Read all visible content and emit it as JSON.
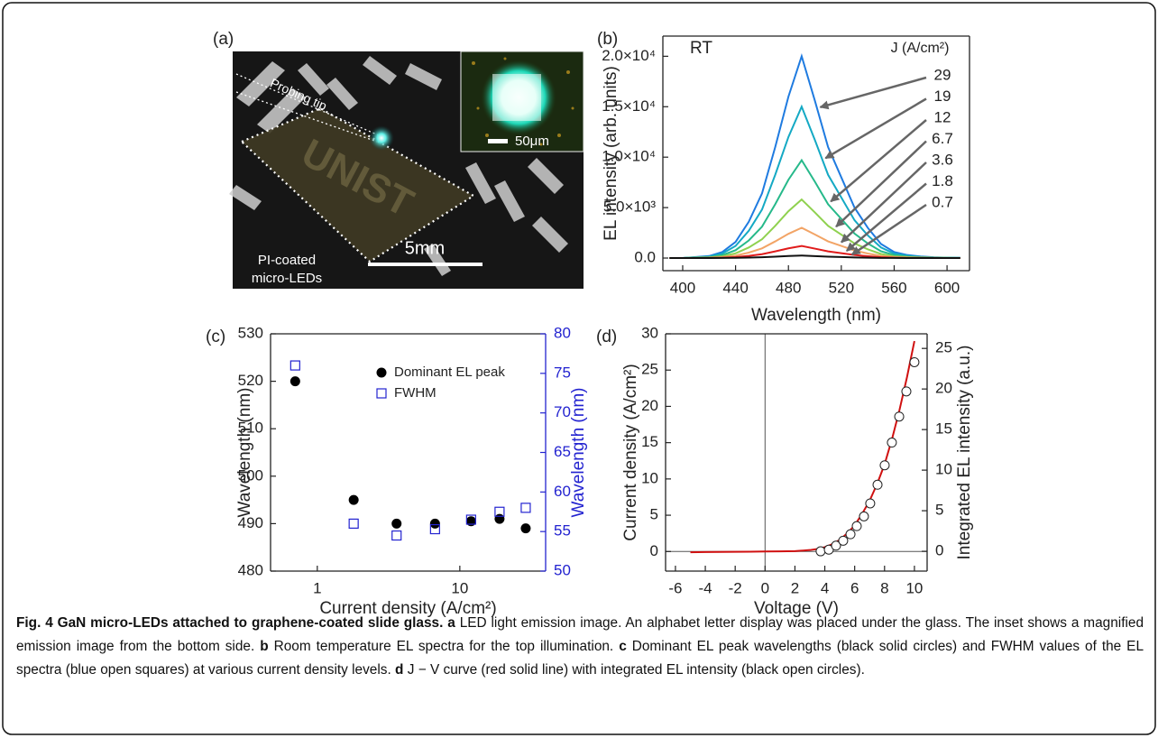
{
  "figure_a": {
    "label": "(a)",
    "annotations": [
      "Probing tip",
      "PI-coated",
      "micro-LEDs",
      "5mm",
      "50μm"
    ]
  },
  "chart_data": [
    {
      "type": "line",
      "label": "(b)",
      "xlabel": "Wavelength (nm)",
      "ylabel": "EL intensity (arb. units)",
      "annotations": [
        "RT"
      ],
      "legend_title": "J (A/cm²)",
      "legend": "right",
      "x": [
        390,
        400,
        410,
        420,
        430,
        440,
        450,
        460,
        470,
        480,
        490,
        500,
        510,
        520,
        530,
        540,
        550,
        560,
        570,
        580,
        590,
        600,
        610
      ],
      "series": [
        {
          "name": "29",
          "color": "#1f7be0",
          "values": [
            0,
            0,
            100,
            200,
            600,
            1600,
            3600,
            6400,
            11000,
            16000,
            20000,
            15600,
            11000,
            8000,
            5000,
            3000,
            1400,
            600,
            300,
            160,
            80,
            40,
            20
          ]
        },
        {
          "name": "19",
          "color": "#14a9c4",
          "values": [
            0,
            0,
            75,
            150,
            450,
            1200,
            2700,
            4800,
            8250,
            12000,
            15000,
            11700,
            8250,
            6000,
            3750,
            2250,
            1050,
            450,
            225,
            120,
            60,
            30,
            15
          ]
        },
        {
          "name": "12",
          "color": "#26b98a",
          "values": [
            0,
            0,
            49,
            97,
            291,
            776,
            1746,
            3104,
            5335,
            7760,
            9700,
            7566,
            5335,
            3880,
            2425,
            1455,
            679,
            291,
            146,
            78,
            39,
            19,
            10
          ]
        },
        {
          "name": "6.7",
          "color": "#8fd14f",
          "values": [
            0,
            0,
            29,
            58,
            174,
            464,
            1044,
            1856,
            3190,
            4640,
            5800,
            4524,
            3190,
            2320,
            1450,
            870,
            406,
            174,
            87,
            46,
            23,
            12,
            6
          ]
        },
        {
          "name": "3.6",
          "color": "#f2a466",
          "values": [
            0,
            0,
            15,
            30,
            90,
            240,
            540,
            960,
            1650,
            2400,
            3000,
            2340,
            1650,
            1200,
            750,
            450,
            210,
            90,
            45,
            24,
            12,
            6,
            3
          ]
        },
        {
          "name": "1.8",
          "color": "#e01b1b",
          "values": [
            0,
            0,
            6,
            12,
            36,
            96,
            216,
            384,
            660,
            960,
            1200,
            936,
            660,
            480,
            300,
            180,
            84,
            36,
            18,
            10,
            5,
            2,
            1
          ]
        },
        {
          "name": "0.7",
          "color": "#111111",
          "values": [
            0,
            0,
            1,
            3,
            8,
            20,
            45,
            80,
            138,
            200,
            250,
            195,
            138,
            100,
            63,
            38,
            18,
            8,
            4,
            2,
            1,
            1,
            0
          ]
        }
      ],
      "xlim": [
        385,
        617
      ],
      "ylim": [
        -1250,
        22000
      ],
      "xticks": [
        400,
        440,
        480,
        520,
        560,
        600
      ],
      "yticks": [
        {
          "value": 0,
          "label": "0.0"
        },
        {
          "value": 5000,
          "label": "5.0×10³"
        },
        {
          "value": 10000,
          "label": "1.0×10⁴"
        },
        {
          "value": 15000,
          "label": "1.5×10⁴"
        },
        {
          "value": 20000,
          "label": "2.0×10⁴"
        }
      ]
    },
    {
      "type": "scatter",
      "label": "(c)",
      "xlabel": "Current density (A/cm²)",
      "ylabel": "Wavelength (nm)",
      "y2label": "Wavelength (nm)",
      "y2color": "#2323d0",
      "xscale": "log",
      "legend": "upper right",
      "x": [
        0.7,
        1.8,
        3.6,
        6.7,
        12,
        19,
        29
      ],
      "series": [
        {
          "name": "Dominant EL peak",
          "color": "#000000",
          "marker": "filled-circle",
          "values": [
            520,
            495,
            490,
            490,
            490.5,
            491,
            489
          ]
        },
        {
          "name": "FWHM",
          "color": "#2323d0",
          "marker": "open-square",
          "axis": "y2",
          "values": [
            76,
            56,
            54.5,
            55.3,
            56.5,
            57.5,
            58
          ]
        }
      ],
      "xlim": [
        0.47,
        40
      ],
      "ylim": [
        480,
        530
      ],
      "y2lim": [
        50,
        80
      ],
      "xticks": [
        1,
        10
      ],
      "yticks": [
        480,
        490,
        500,
        510,
        520,
        530
      ],
      "y2ticks": [
        50,
        55,
        60,
        65,
        70,
        75,
        80
      ]
    },
    {
      "type": "line",
      "label": "(d)",
      "xlabel": "Voltage (V)",
      "ylabel": "Current density  (A/cm²)",
      "y2label": "Integrated EL intensity (a.u.)",
      "zero_lines": true,
      "series": [
        {
          "color": "#d01010",
          "x": [
            -5,
            -4,
            -3,
            -2,
            -1,
            0,
            1,
            2,
            3,
            3.5,
            4,
            4.5,
            5,
            5.5,
            6,
            6.5,
            7,
            7.5,
            8,
            8.5,
            9,
            9.5,
            10
          ],
          "values": [
            -0.1,
            -0.08,
            -0.06,
            -0.04,
            -0.02,
            0,
            0.02,
            0.05,
            0.2,
            0.35,
            0.6,
            1.0,
            1.6,
            2.5,
            3.6,
            5.2,
            7,
            9.3,
            12,
            15.5,
            19.5,
            24,
            29
          ]
        },
        {
          "color": "#222222",
          "marker": "open-circle",
          "axis": "y2",
          "x": [
            3.72,
            4.27,
            4.75,
            5.23,
            5.72,
            6.14,
            6.62,
            7.04,
            7.53,
            8.01,
            8.49,
            8.98,
            9.46,
            10.0
          ],
          "values": [
            0,
            0.2,
            0.7,
            1.3,
            2.1,
            3.1,
            4.3,
            5.9,
            8.2,
            10.6,
            13.4,
            16.6,
            19.7,
            23.3
          ]
        }
      ],
      "xlim": [
        -6.66,
        10.85
      ],
      "ylim": [
        -2.7,
        30
      ],
      "y2lim": [
        -2.44,
        26.8
      ],
      "xticks": [
        -6,
        -4,
        -2,
        0,
        2,
        4,
        6,
        8,
        10
      ],
      "yticks": [
        0,
        5,
        10,
        15,
        20,
        25,
        30
      ],
      "y2ticks": [
        0,
        5,
        10,
        15,
        20,
        25
      ]
    }
  ],
  "caption": {
    "title": "Fig. 4 GaN micro-LEDs attached to graphene-coated slide glass.",
    "items": [
      {
        "label": "a",
        "text": "LED light emission image. An alphabet letter display was placed under the glass. The inset shows a magnified emission image from the bottom side."
      },
      {
        "label": "b",
        "text": "Room temperature EL spectra for the top illumination."
      },
      {
        "label": "c",
        "text": "Dominant EL peak wavelengths (black solid circles) and FWHM values of the EL spectra (blue open squares) at various current density levels."
      },
      {
        "label": "d",
        "text": "J − V curve (red solid line) with integrated EL intensity (black open circles)."
      }
    ]
  }
}
